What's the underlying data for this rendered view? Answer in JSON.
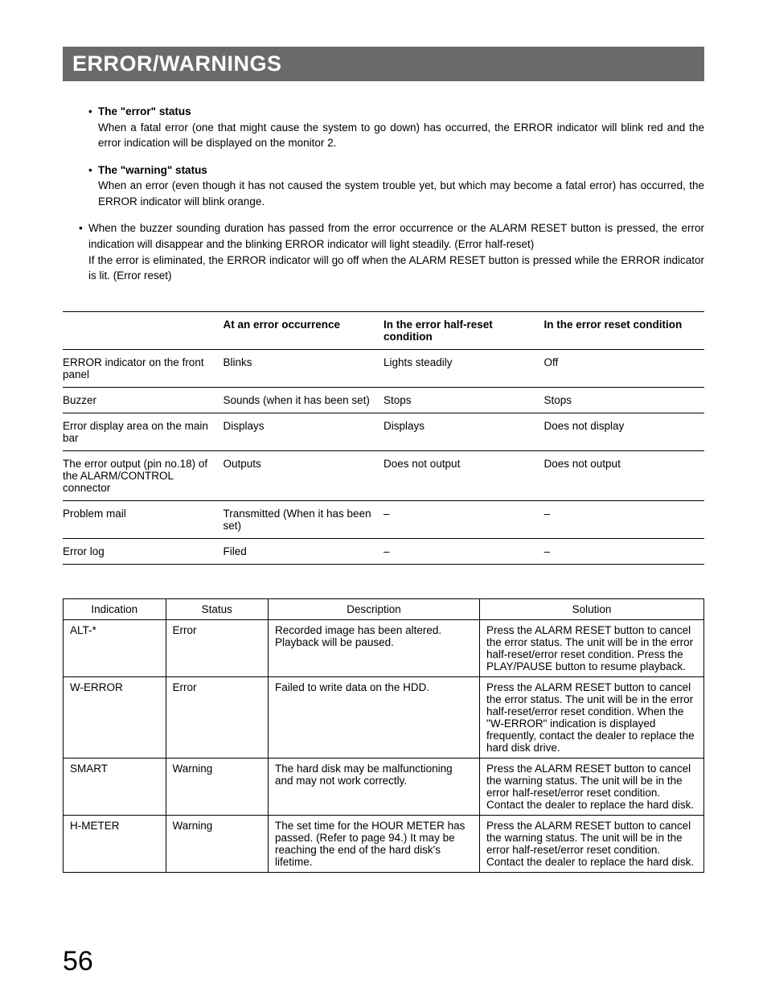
{
  "page": {
    "title": "ERROR/WARNINGS",
    "number": "56",
    "text_color": "#000000",
    "bg_color": "#ffffff",
    "title_bg": "#6a6a6a",
    "title_fg": "#ffffff"
  },
  "bullets": {
    "error_status": {
      "head": "The \"error\" status",
      "body": "When a fatal error (one that might cause the system to go down) has occurred, the ERROR indicator will blink red and the error indication will be displayed on the monitor 2."
    },
    "warning_status": {
      "head": "The \"warning\" status",
      "body": "When an error (even though it has not caused the system trouble yet, but which may become a fatal error) has occurred, the ERROR indicator will blink orange."
    },
    "buzzer_para": {
      "line1": "When the buzzer sounding duration has passed from the error occurrence or the ALARM RESET button is pressed, the error indication will disappear and the blinking ERROR indicator will light steadily. (Error half-reset)",
      "line2": "If the error is eliminated, the ERROR indicator will go off when the ALARM RESET button is pressed while the ERROR indicator is lit. (Error reset)"
    }
  },
  "table1": {
    "headers": [
      "",
      "At an error occurrence",
      "In the error half-reset condition",
      "In the error reset condition"
    ],
    "rows": [
      [
        "ERROR indicator on the front panel",
        "Blinks",
        "Lights steadily",
        "Off"
      ],
      [
        "Buzzer",
        "Sounds (when it has been set)",
        "Stops",
        "Stops"
      ],
      [
        "Error display area on the main bar",
        "Displays",
        "Displays",
        "Does not display"
      ],
      [
        "The error output (pin no.18) of the ALARM/CONTROL connector",
        "Outputs",
        "Does not output",
        "Does not output"
      ],
      [
        "Problem mail",
        "Transmitted (When it has been set)",
        "–",
        "–"
      ],
      [
        "Error log",
        "Filed",
        "–",
        "–"
      ]
    ]
  },
  "table2": {
    "headers": [
      "Indication",
      "Status",
      "Description",
      "Solution"
    ],
    "rows": [
      {
        "indication": "ALT-*",
        "status": "Error",
        "description": "Recorded image has been altered. Playback will be paused.",
        "solution": "Press the ALARM RESET button to cancel the error status. The unit will be in the error half-reset/error reset condition. Press the PLAY/PAUSE button to resume playback."
      },
      {
        "indication": "W-ERROR",
        "status": "Error",
        "description": "Failed to write data on the HDD.",
        "solution": "Press the ALARM RESET button to cancel the error status. The unit will be in the error half-reset/error reset condition. When the \"W-ERROR\" indication is displayed frequently, contact the dealer to replace the hard disk drive."
      },
      {
        "indication": "SMART",
        "status": "Warning",
        "description": "The hard disk may be malfunctioning and may not work correctly.",
        "solution": "Press the ALARM RESET button to cancel the warning status. The unit will be in the error half-reset/error reset condition. Contact the dealer to replace the hard disk."
      },
      {
        "indication": "H-METER",
        "status": "Warning",
        "description": "The set time for the HOUR METER has passed. (Refer to page 94.)\nIt may be reaching the end of the hard disk's lifetime.",
        "solution": "Press the ALARM RESET button to cancel the warning status. The unit will be in the error half-reset/error reset condition. Contact the dealer to replace the hard disk."
      }
    ]
  }
}
